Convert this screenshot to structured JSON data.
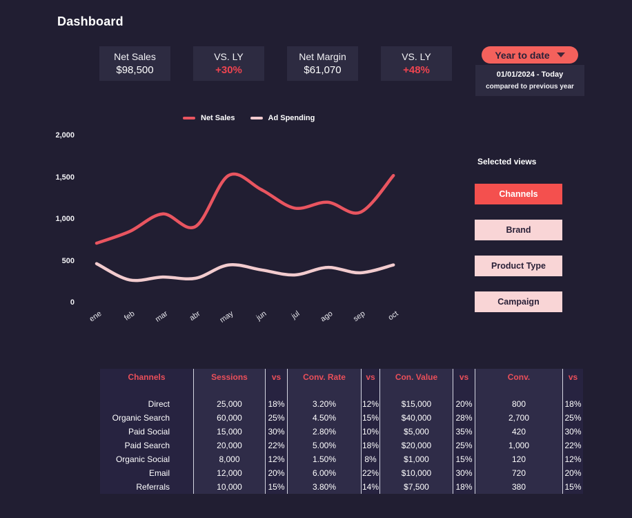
{
  "page": {
    "title": "Dashboard",
    "colors": {
      "background": "#211e32",
      "card": "#2d2b41",
      "accent_red": "#ee4450",
      "button_active": "#f4504e",
      "button_inactive": "#f9d5d6",
      "pill": "#f4615c"
    }
  },
  "kpis": [
    {
      "label": "Net Sales",
      "value": "$98,500",
      "accent": false
    },
    {
      "label": "VS. LY",
      "value": "+30%",
      "accent": true
    },
    {
      "label": "Net Margin",
      "value": "$61,070",
      "accent": false
    },
    {
      "label": "VS. LY",
      "value": "+48%",
      "accent": true
    }
  ],
  "period": {
    "selector_label": "Year to date",
    "range": "01/01/2024 - Today",
    "comparison": "compared to previous year"
  },
  "chart_data": {
    "type": "line",
    "x": [
      "ene",
      "feb",
      "mar",
      "abr",
      "may",
      "jun",
      "jul",
      "ago",
      "sep",
      "oct"
    ],
    "series": [
      {
        "name": "Net Sales",
        "color": "#e95560",
        "values": [
          710,
          850,
          1060,
          910,
          1520,
          1350,
          1130,
          1200,
          1080,
          1520
        ]
      },
      {
        "name": "Ad Spending",
        "color": "#f2cbce",
        "values": [
          465,
          270,
          305,
          290,
          450,
          390,
          330,
          420,
          355,
          450
        ]
      }
    ],
    "ylim": [
      0,
      2000
    ],
    "yticks": [
      0,
      500,
      1000,
      1500,
      2000
    ],
    "ytick_labels_top_to_bottom": [
      "2,000",
      "1,500",
      "1,000",
      "500",
      "0"
    ],
    "legend_position": "top",
    "grid": false
  },
  "views": {
    "title": "Selected views",
    "buttons": [
      {
        "label": "Channels",
        "active": true
      },
      {
        "label": "Brand",
        "active": false
      },
      {
        "label": "Product Type",
        "active": false
      },
      {
        "label": "Campaign",
        "active": false
      }
    ]
  },
  "table": {
    "headers": [
      "Channels",
      "Sessions",
      "vs",
      "Conv. Rate",
      "vs",
      "Con. Value",
      "vs",
      "Conv.",
      "vs"
    ],
    "rows": [
      [
        "Direct",
        "25,000",
        "18%",
        "3.20%",
        "12%",
        "$15,000",
        "20%",
        "800",
        "18%"
      ],
      [
        "Organic Search",
        "60,000",
        "25%",
        "4.50%",
        "15%",
        "$40,000",
        "28%",
        "2,700",
        "25%"
      ],
      [
        "Paid Social",
        "15,000",
        "30%",
        "2.80%",
        "10%",
        "$5,000",
        "35%",
        "420",
        "30%"
      ],
      [
        "Paid Search",
        "20,000",
        "22%",
        "5.00%",
        "18%",
        "$20,000",
        "25%",
        "1,000",
        "22%"
      ],
      [
        "Organic Social",
        "8,000",
        "12%",
        "1.50%",
        "8%",
        "$1,000",
        "15%",
        "120",
        "12%"
      ],
      [
        "Email",
        "12,000",
        "20%",
        "6.00%",
        "22%",
        "$10,000",
        "30%",
        "720",
        "20%"
      ],
      [
        "Referrals",
        "10,000",
        "15%",
        "3.80%",
        "14%",
        "$7,500",
        "18%",
        "380",
        "15%"
      ]
    ]
  }
}
